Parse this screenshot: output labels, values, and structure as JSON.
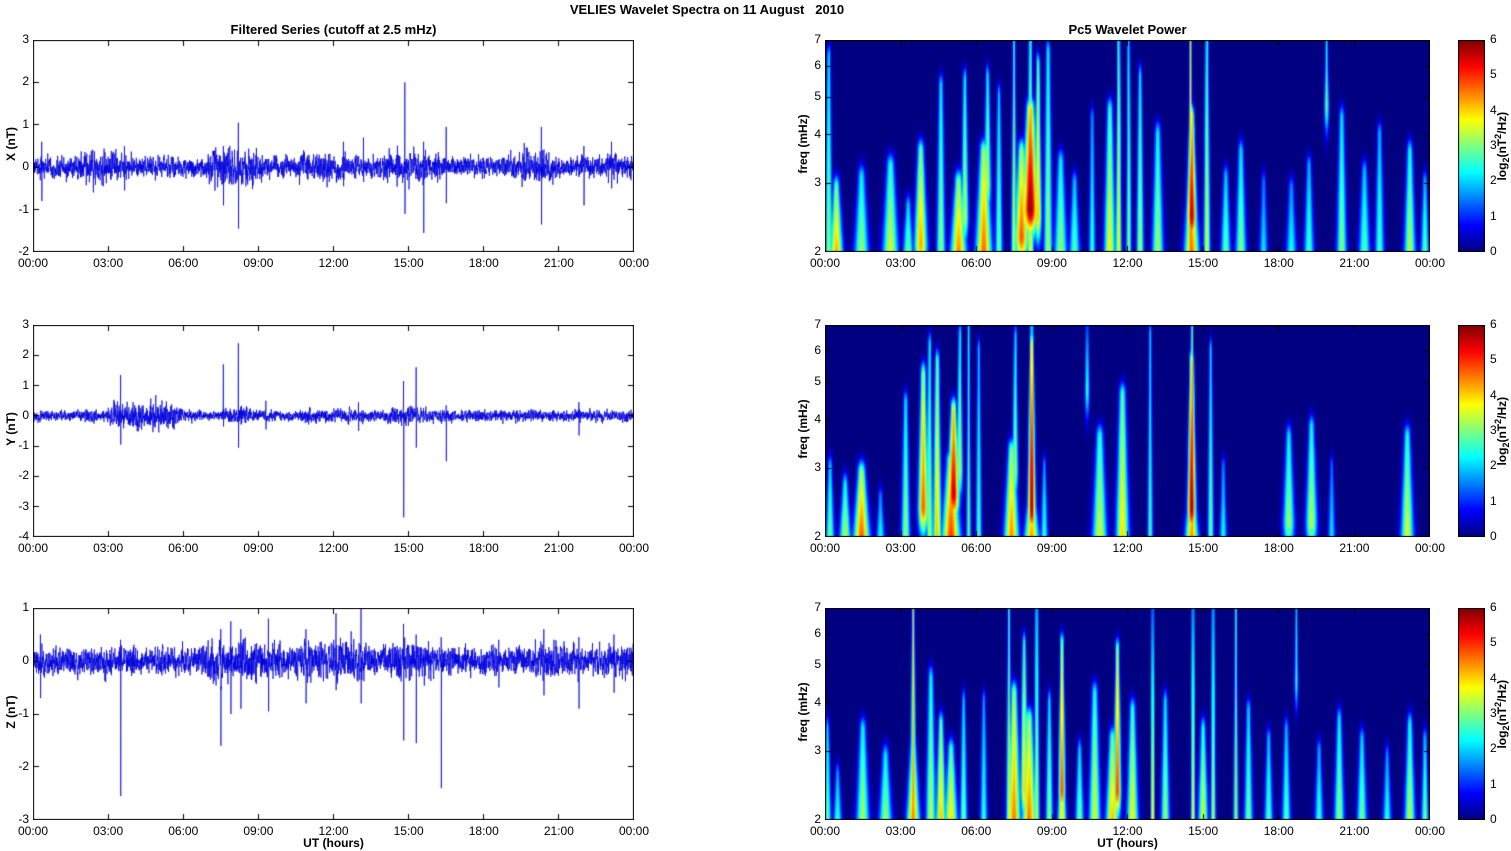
{
  "figure": {
    "title": "VELIES Wavelet Spectra on 11 August   2010",
    "xlabel": "UT (hours)",
    "time_tick_labels": [
      "00:00",
      "03:00",
      "06:00",
      "09:00",
      "12:00",
      "15:00",
      "18:00",
      "21:00",
      "00:00"
    ],
    "time_tick_hours": [
      0,
      3,
      6,
      9,
      12,
      15,
      18,
      21,
      24
    ],
    "colorbar_label_parts": {
      "pre": "log",
      "sub": "2",
      "mid": "(nT",
      "sup": "2",
      "post": "/Hz)"
    },
    "background": "#ffffff",
    "line_color": "#0000dd",
    "colormap": "jet"
  },
  "chart_data": [
    {
      "id": "x-filtered-series",
      "type": "line",
      "title": "Filtered Series (cutoff at 2.5 mHz)",
      "ylabel": "X (nT)",
      "ylim": [
        -2,
        3
      ],
      "y_ticks": [
        3,
        2,
        1,
        0,
        -1,
        -2
      ],
      "x_range_hours": [
        0,
        24
      ],
      "grid": false,
      "noise_amp": 0.13,
      "bursts": [
        [
          2.0,
          3.2,
          1.5
        ],
        [
          7.2,
          8.8,
          1.7
        ],
        [
          10.9,
          12.3,
          1.5
        ],
        [
          14.2,
          15.8,
          1.5
        ],
        [
          19.7,
          20.6,
          1.8
        ],
        [
          22.9,
          23.5,
          1.35
        ]
      ],
      "spikes": [
        [
          0.35,
          0.6,
          -0.8
        ],
        [
          3.65,
          0.5,
          -0.55
        ],
        [
          7.6,
          0.5,
          -0.9
        ],
        [
          8.2,
          1.05,
          -1.45
        ],
        [
          12.4,
          0.6,
          -0.45
        ],
        [
          13.2,
          0.7,
          -0.35
        ],
        [
          14.85,
          2.0,
          -1.1
        ],
        [
          15.6,
          0.6,
          -1.55
        ],
        [
          16.5,
          0.95,
          -0.85
        ],
        [
          20.3,
          0.95,
          -1.35
        ],
        [
          22.0,
          0.5,
          -0.9
        ],
        [
          23.1,
          0.6,
          -0.5
        ]
      ]
    },
    {
      "id": "x-wavelet-power",
      "type": "heatmap",
      "title": "Pc5 Wavelet Power",
      "ylabel": "freq (mHz)",
      "ylim": [
        2,
        7
      ],
      "yscale": "log",
      "y_ticks": [
        7,
        6,
        5,
        4,
        3,
        2
      ],
      "x_range_hours": [
        0,
        24
      ],
      "colorbar": {
        "min": 0,
        "max": 6,
        "ticks": [
          6,
          5,
          4,
          3,
          2,
          1,
          0
        ]
      },
      "features": [
        [
          0.15,
          2,
          6.3,
          0.1,
          3.2
        ],
        [
          0.45,
          2,
          2.9,
          0.18,
          4.3
        ],
        [
          1.45,
          2,
          3.1,
          0.2,
          3.2
        ],
        [
          2.6,
          2,
          3.3,
          0.22,
          3.6
        ],
        [
          3.3,
          2,
          2.6,
          0.15,
          3.0
        ],
        [
          3.8,
          2.1,
          3.6,
          0.18,
          4.3
        ],
        [
          4.6,
          2,
          5.3,
          0.12,
          3.2
        ],
        [
          5.3,
          2,
          3.0,
          0.22,
          4.5
        ],
        [
          5.55,
          2.5,
          5.5,
          0.1,
          3.4
        ],
        [
          6.3,
          2,
          3.6,
          0.22,
          4.7
        ],
        [
          6.45,
          3,
          5.6,
          0.1,
          3.3
        ],
        [
          6.9,
          2,
          5.0,
          0.1,
          3.0
        ],
        [
          7.5,
          2,
          7.0,
          0.07,
          3.6
        ],
        [
          7.8,
          2.2,
          3.6,
          0.2,
          4.8
        ],
        [
          8.15,
          2.6,
          4.6,
          0.22,
          6.0
        ],
        [
          8.15,
          2,
          7.0,
          0.09,
          3.8
        ],
        [
          8.45,
          2.5,
          6.0,
          0.1,
          4.2
        ],
        [
          8.85,
          2,
          6.5,
          0.12,
          3.3
        ],
        [
          9.35,
          2,
          3.4,
          0.18,
          3.2
        ],
        [
          9.9,
          2,
          3.0,
          0.15,
          2.8
        ],
        [
          10.6,
          2,
          4.4,
          0.09,
          2.6
        ],
        [
          11.3,
          2,
          4.6,
          0.16,
          3.8
        ],
        [
          11.65,
          2,
          7.0,
          0.08,
          3.9
        ],
        [
          12.05,
          2,
          7.0,
          0.07,
          3.2
        ],
        [
          12.5,
          2,
          5.6,
          0.1,
          3.3
        ],
        [
          13.2,
          2,
          4.0,
          0.16,
          3.3
        ],
        [
          14.5,
          2,
          7.0,
          0.06,
          4.6
        ],
        [
          14.55,
          2.5,
          4.4,
          0.13,
          5.8
        ],
        [
          14.55,
          2,
          3.2,
          0.2,
          4.6
        ],
        [
          15.15,
          2,
          6.8,
          0.09,
          3.6
        ],
        [
          15.9,
          2,
          3.1,
          0.14,
          2.9
        ],
        [
          16.5,
          2,
          3.6,
          0.15,
          3.1
        ],
        [
          17.4,
          2,
          3.0,
          0.12,
          2.2
        ],
        [
          18.5,
          2,
          2.9,
          0.15,
          2.4
        ],
        [
          19.2,
          2,
          3.3,
          0.14,
          2.7
        ],
        [
          19.9,
          4.8,
          7.0,
          0.06,
          3.0
        ],
        [
          20.5,
          2,
          4.4,
          0.14,
          3.1
        ],
        [
          21.4,
          2,
          3.2,
          0.16,
          2.8
        ],
        [
          22.0,
          2,
          4.0,
          0.13,
          2.7
        ],
        [
          23.2,
          2,
          3.6,
          0.16,
          3.4
        ],
        [
          23.8,
          2,
          3.0,
          0.12,
          2.8
        ]
      ]
    },
    {
      "id": "y-filtered-series",
      "type": "line",
      "title": "",
      "ylabel": "Y (nT)",
      "ylim": [
        -4,
        3
      ],
      "y_ticks": [
        3,
        2,
        1,
        0,
        -1,
        -2,
        -3,
        -4
      ],
      "x_range_hours": [
        0,
        24
      ],
      "grid": false,
      "noise_amp": 0.1,
      "bursts": [
        [
          3.3,
          5.6,
          2.2
        ],
        [
          7.9,
          8.5,
          1.5
        ],
        [
          11.0,
          12.5,
          1.2
        ],
        [
          14.3,
          15.4,
          1.5
        ]
      ],
      "spikes": [
        [
          3.5,
          1.35,
          -0.95
        ],
        [
          7.6,
          1.7,
          -0.35
        ],
        [
          8.2,
          2.4,
          -1.05
        ],
        [
          9.3,
          0.5,
          -0.45
        ],
        [
          13.0,
          0.45,
          -0.5
        ],
        [
          14.8,
          1.15,
          -3.35
        ],
        [
          15.3,
          1.6,
          -1.05
        ],
        [
          16.5,
          0.35,
          -1.5
        ],
        [
          21.8,
          0.45,
          -0.65
        ]
      ]
    },
    {
      "id": "y-wavelet-power",
      "type": "heatmap",
      "title": "",
      "ylabel": "freq (mHz)",
      "ylim": [
        2,
        7
      ],
      "yscale": "log",
      "y_ticks": [
        7,
        6,
        5,
        4,
        3,
        2
      ],
      "x_range_hours": [
        0,
        24
      ],
      "colorbar": {
        "min": 0,
        "max": 6,
        "ticks": [
          6,
          5,
          4,
          3,
          2,
          1,
          0
        ]
      },
      "features": [
        [
          0.2,
          2,
          3.0,
          0.12,
          3.0
        ],
        [
          0.8,
          2,
          2.7,
          0.16,
          3.4
        ],
        [
          1.45,
          2,
          2.9,
          0.22,
          4.8
        ],
        [
          2.2,
          2,
          2.5,
          0.12,
          2.4
        ],
        [
          3.2,
          2,
          4.4,
          0.12,
          3.2
        ],
        [
          3.9,
          2.4,
          5.2,
          0.14,
          4.8
        ],
        [
          4.15,
          2,
          6.2,
          0.09,
          3.4
        ],
        [
          4.45,
          2,
          5.6,
          0.12,
          4.2
        ],
        [
          5.0,
          2,
          3.1,
          0.25,
          5.0
        ],
        [
          5.1,
          2.6,
          4.2,
          0.16,
          5.7
        ],
        [
          5.35,
          3,
          6.6,
          0.08,
          3.4
        ],
        [
          5.7,
          2,
          7.0,
          0.06,
          3.0
        ],
        [
          6.1,
          2,
          6.0,
          0.08,
          2.8
        ],
        [
          7.4,
          2,
          3.3,
          0.2,
          4.5
        ],
        [
          7.55,
          3,
          6.5,
          0.08,
          3.2
        ],
        [
          8.2,
          2.4,
          6.2,
          0.1,
          6.0
        ],
        [
          8.2,
          2,
          7.0,
          0.06,
          4.6
        ],
        [
          8.2,
          2,
          2.6,
          0.2,
          4.4
        ],
        [
          8.7,
          2,
          3.0,
          0.1,
          2.6
        ],
        [
          10.4,
          4.8,
          7.0,
          0.06,
          2.6
        ],
        [
          10.9,
          2,
          3.6,
          0.2,
          3.6
        ],
        [
          11.8,
          2,
          4.6,
          0.18,
          4.0
        ],
        [
          12.9,
          2,
          6.6,
          0.07,
          2.8
        ],
        [
          14.55,
          2.4,
          5.6,
          0.11,
          6.0
        ],
        [
          14.55,
          2,
          7.0,
          0.06,
          4.6
        ],
        [
          14.55,
          2,
          2.7,
          0.18,
          4.4
        ],
        [
          15.3,
          2,
          6.0,
          0.08,
          3.0
        ],
        [
          15.8,
          2,
          3.0,
          0.1,
          2.4
        ],
        [
          18.4,
          2.2,
          3.6,
          0.16,
          3.2
        ],
        [
          19.3,
          2.2,
          3.8,
          0.16,
          3.4
        ],
        [
          20.1,
          2,
          3.0,
          0.1,
          2.2
        ],
        [
          23.1,
          2,
          3.6,
          0.18,
          3.6
        ]
      ]
    },
    {
      "id": "z-filtered-series",
      "type": "line",
      "title": "",
      "ylabel": "Z (nT)",
      "ylim": [
        -3,
        1
      ],
      "y_ticks": [
        1,
        0,
        -1,
        -2,
        -3
      ],
      "x_range_hours": [
        0,
        24
      ],
      "grid": false,
      "noise_amp": 0.14,
      "bursts": [
        [
          7.0,
          9.7,
          1.5
        ],
        [
          11.0,
          13.6,
          1.45
        ],
        [
          14.5,
          15.6,
          1.3
        ],
        [
          20.1,
          21.0,
          1.25
        ],
        [
          23.0,
          23.8,
          1.2
        ]
      ],
      "spikes": [
        [
          0.3,
          0.5,
          -0.7
        ],
        [
          3.5,
          0.4,
          -2.55
        ],
        [
          7.5,
          0.6,
          -1.6
        ],
        [
          7.9,
          0.75,
          -1.0
        ],
        [
          8.3,
          0.6,
          -0.9
        ],
        [
          9.4,
          0.8,
          -0.95
        ],
        [
          10.9,
          0.6,
          -0.8
        ],
        [
          12.1,
          0.9,
          -0.55
        ],
        [
          13.1,
          1.0,
          -0.8
        ],
        [
          14.8,
          0.7,
          -1.5
        ],
        [
          15.3,
          0.5,
          -1.55
        ],
        [
          16.3,
          0.45,
          -2.4
        ],
        [
          18.6,
          0.4,
          -0.5
        ],
        [
          20.4,
          0.6,
          -0.65
        ],
        [
          21.8,
          0.45,
          -0.9
        ],
        [
          23.2,
          0.5,
          -0.6
        ]
      ]
    },
    {
      "id": "z-wavelet-power",
      "type": "heatmap",
      "title": "",
      "ylabel": "freq (mHz)",
      "ylim": [
        2,
        7
      ],
      "yscale": "log",
      "y_ticks": [
        7,
        6,
        5,
        4,
        3,
        2
      ],
      "x_range_hours": [
        0,
        24
      ],
      "colorbar": {
        "min": 0,
        "max": 6,
        "ticks": [
          6,
          5,
          4,
          3,
          2,
          1,
          0
        ]
      },
      "features": [
        [
          0.1,
          2,
          3.4,
          0.1,
          3.0
        ],
        [
          0.5,
          2,
          2.6,
          0.12,
          2.6
        ],
        [
          1.5,
          2,
          3.4,
          0.18,
          3.3
        ],
        [
          2.4,
          2,
          2.9,
          0.18,
          3.2
        ],
        [
          3.5,
          2,
          7.0,
          0.07,
          4.6
        ],
        [
          3.5,
          2,
          3.0,
          0.18,
          4.4
        ],
        [
          4.2,
          2,
          4.6,
          0.14,
          3.4
        ],
        [
          4.6,
          2,
          3.5,
          0.14,
          4.2
        ],
        [
          5.0,
          2,
          3.0,
          0.18,
          4.0
        ],
        [
          5.5,
          2,
          4.0,
          0.1,
          3.0
        ],
        [
          6.3,
          2,
          4.0,
          0.1,
          2.6
        ],
        [
          7.3,
          2,
          7.0,
          0.07,
          3.6
        ],
        [
          7.5,
          2,
          4.2,
          0.18,
          4.6
        ],
        [
          7.9,
          2.4,
          5.6,
          0.1,
          4.0
        ],
        [
          8.1,
          2,
          3.6,
          0.2,
          4.6
        ],
        [
          8.4,
          2,
          6.8,
          0.08,
          3.4
        ],
        [
          8.9,
          2,
          4.0,
          0.1,
          3.2
        ],
        [
          9.4,
          2.4,
          5.6,
          0.09,
          5.0
        ],
        [
          9.4,
          2,
          3.0,
          0.12,
          4.0
        ],
        [
          10.1,
          2,
          3.0,
          0.12,
          3.0
        ],
        [
          10.7,
          2,
          4.2,
          0.16,
          3.6
        ],
        [
          11.4,
          2,
          3.2,
          0.18,
          4.2
        ],
        [
          11.6,
          2.4,
          5.4,
          0.1,
          5.0
        ],
        [
          12.2,
          2,
          3.8,
          0.16,
          3.8
        ],
        [
          13.0,
          2,
          7.0,
          0.05,
          4.2
        ],
        [
          13.5,
          2,
          4.0,
          0.12,
          3.2
        ],
        [
          14.6,
          2,
          7.0,
          0.06,
          3.8
        ],
        [
          15.0,
          2,
          3.4,
          0.14,
          3.6
        ],
        [
          15.4,
          2,
          6.8,
          0.07,
          3.4
        ],
        [
          16.3,
          2,
          7.0,
          0.06,
          3.4
        ],
        [
          16.8,
          2,
          3.8,
          0.12,
          3.0
        ],
        [
          17.6,
          2,
          3.2,
          0.12,
          2.8
        ],
        [
          18.3,
          2,
          3.4,
          0.12,
          2.8
        ],
        [
          18.7,
          4.6,
          7.0,
          0.05,
          2.6
        ],
        [
          19.6,
          2,
          3.0,
          0.12,
          2.6
        ],
        [
          20.4,
          2,
          3.6,
          0.14,
          3.2
        ],
        [
          21.3,
          2,
          3.2,
          0.14,
          3.0
        ],
        [
          22.3,
          2,
          2.9,
          0.12,
          2.5
        ],
        [
          23.2,
          2,
          3.5,
          0.15,
          3.4
        ],
        [
          23.8,
          2,
          3.2,
          0.1,
          3.0
        ]
      ]
    }
  ]
}
